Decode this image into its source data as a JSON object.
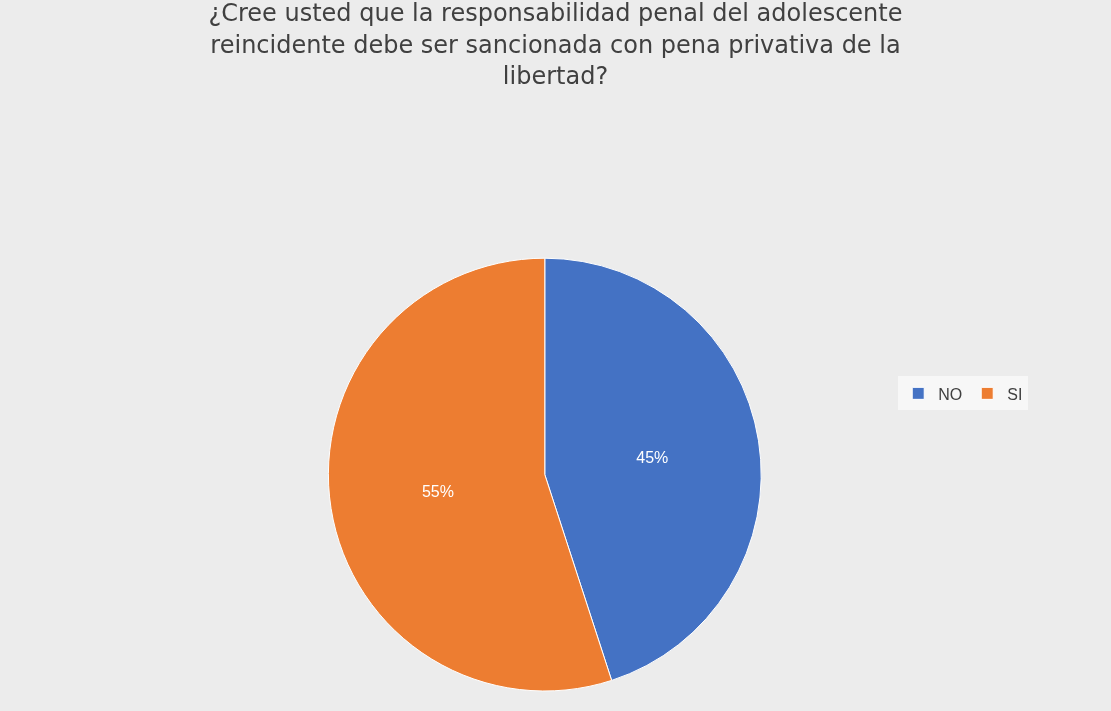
{
  "chart_data": {
    "type": "pie",
    "title": "¿Cree usted que la responsabilidad penal del adolescente reincidente debe ser sancionada con pena privativa de la libertad?",
    "categories": [
      "NO",
      "SI"
    ],
    "values": [
      45,
      55
    ],
    "colors": [
      "#4472c4",
      "#ed7d31"
    ],
    "value_labels": [
      "45%",
      "55%"
    ],
    "legend": "right"
  }
}
